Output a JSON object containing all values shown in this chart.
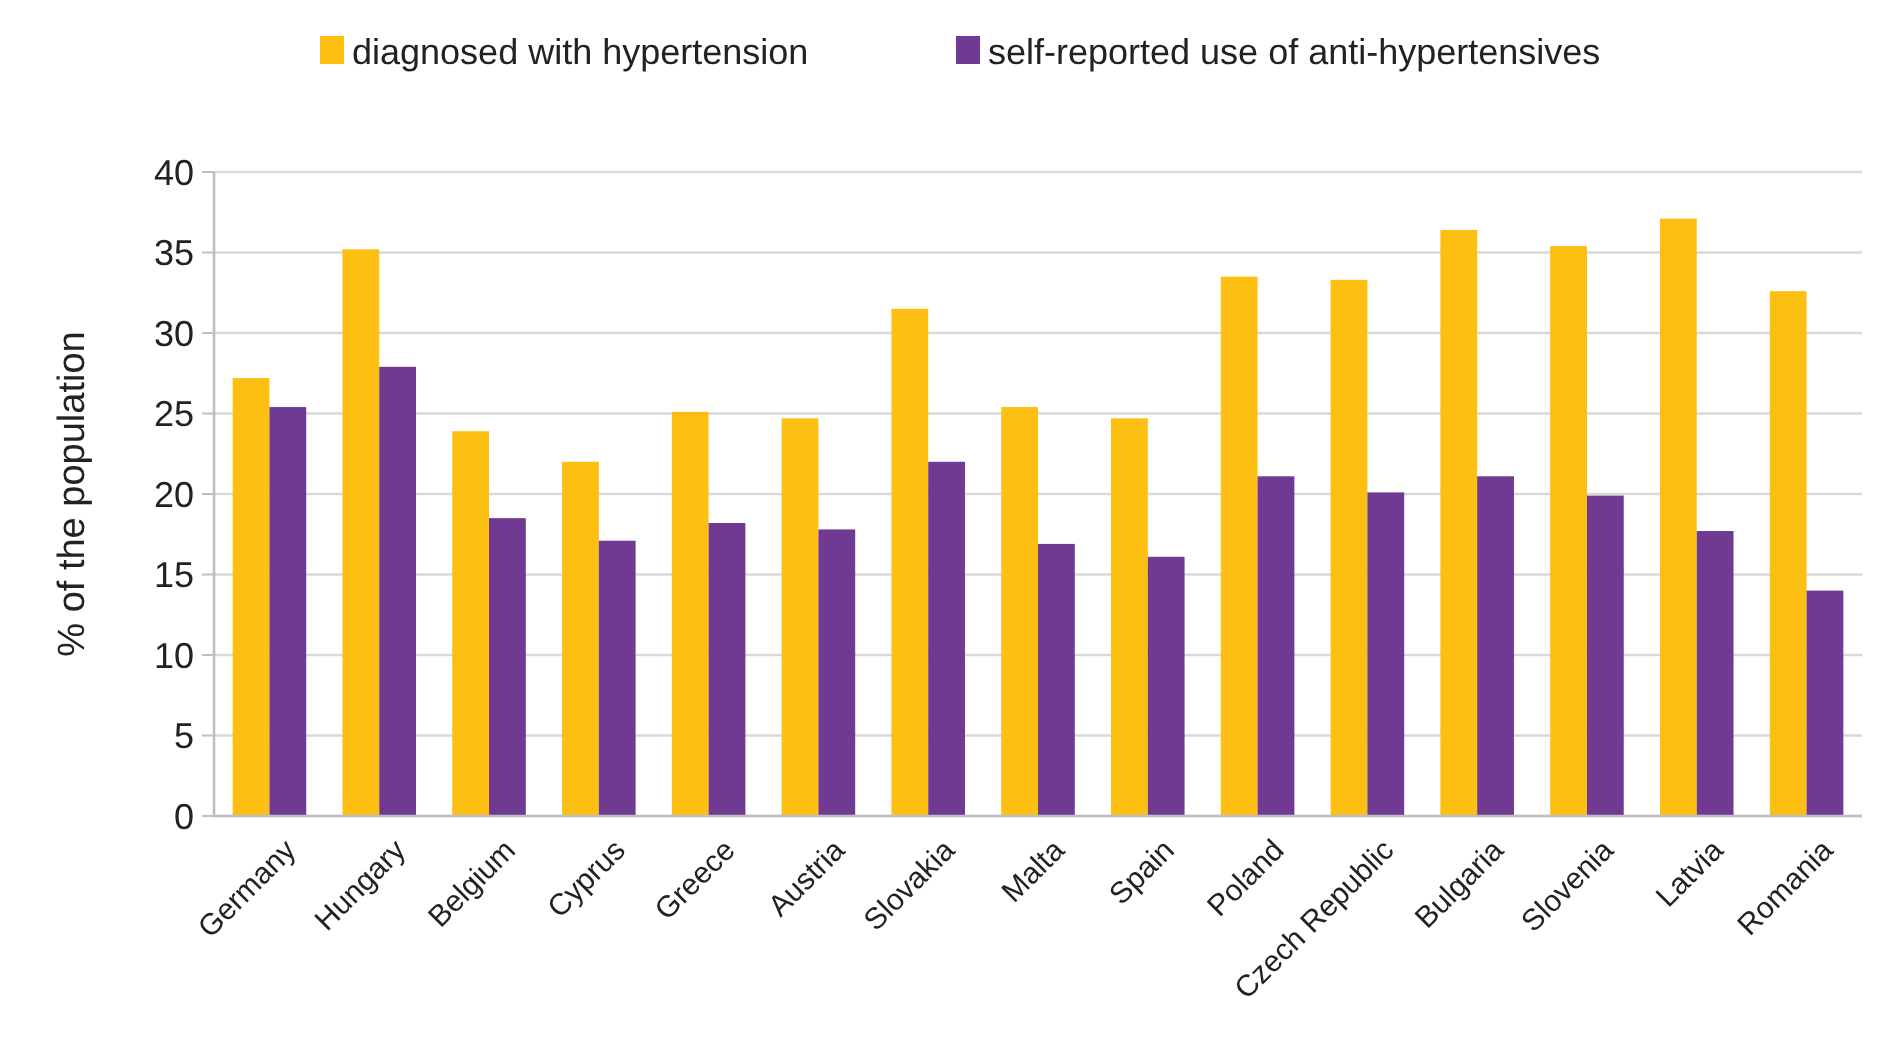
{
  "chart_data": {
    "type": "bar",
    "ylabel": "% of the population",
    "categories": [
      "Germany",
      "Hungary",
      "Belgium",
      "Cyprus",
      "Greece",
      "Austria",
      "Slovakia",
      "Malta",
      "Spain",
      "Poland",
      "Czech Republic",
      "Bulgaria",
      "Slovenia",
      "Latvia",
      "Romania"
    ],
    "series": [
      {
        "name": "diagnosed with hypertension",
        "color": "#fcbf12",
        "values": [
          27.2,
          35.2,
          23.9,
          22.0,
          25.1,
          24.7,
          31.5,
          25.4,
          24.7,
          33.5,
          33.3,
          36.4,
          35.4,
          37.1,
          32.6
        ]
      },
      {
        "name": "self-reported use of anti-hypertensives",
        "color": "#703a93",
        "values": [
          25.4,
          27.9,
          18.5,
          17.1,
          18.2,
          17.8,
          22.0,
          16.9,
          16.1,
          21.1,
          20.1,
          21.1,
          19.9,
          17.7,
          14.0
        ]
      }
    ],
    "ylim": [
      0,
      40
    ],
    "yticks": [
      0,
      5,
      10,
      15,
      20,
      25,
      30,
      35,
      40
    ],
    "grid": "y",
    "legend": "top"
  }
}
